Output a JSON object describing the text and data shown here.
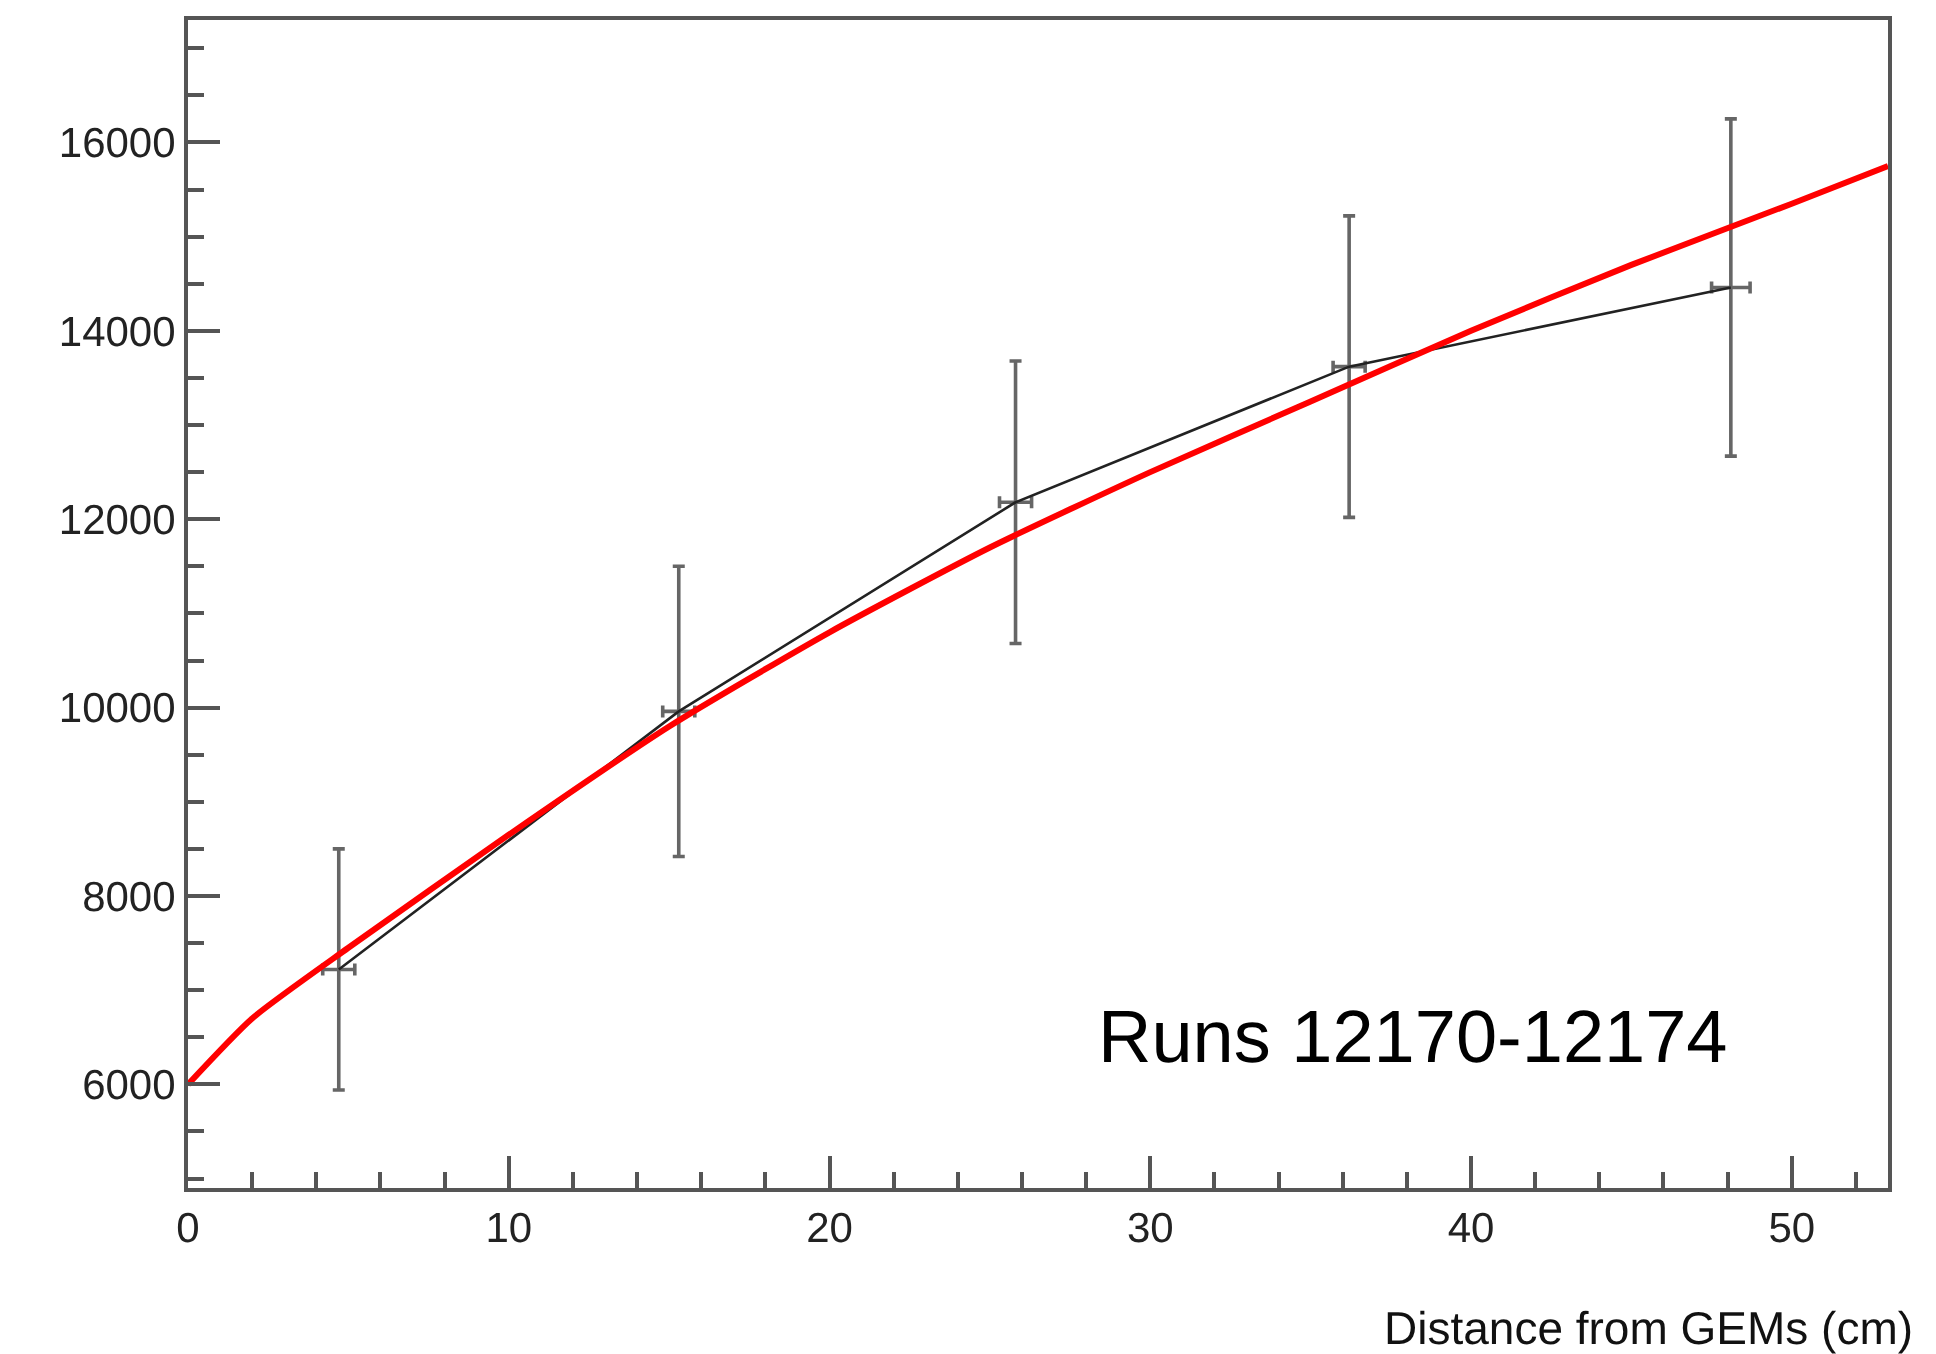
{
  "chart_data": {
    "type": "line",
    "xlabel": "Distance from GEMs (cm)",
    "annotations": [
      "Runs 12170-12174"
    ],
    "xlim": [
      0,
      53
    ],
    "ylim": [
      4900,
      17300
    ],
    "xticks": [
      0,
      {
        "value": 2,
        "label": null
      },
      {
        "value": 4,
        "label": null
      },
      {
        "value": 6,
        "label": null
      },
      {
        "value": 8,
        "label": null
      },
      10,
      {
        "value": 12,
        "label": null
      },
      {
        "value": 14,
        "label": null
      },
      {
        "value": 16,
        "label": null
      },
      {
        "value": 18,
        "label": null
      },
      20,
      {
        "value": 22,
        "label": null
      },
      {
        "value": 24,
        "label": null
      },
      {
        "value": 26,
        "label": null
      },
      {
        "value": 28,
        "label": null
      },
      30,
      {
        "value": 32,
        "label": null
      },
      {
        "value": 34,
        "label": null
      },
      {
        "value": 36,
        "label": null
      },
      {
        "value": 38,
        "label": null
      },
      40,
      {
        "value": 42,
        "label": null
      },
      {
        "value": 44,
        "label": null
      },
      {
        "value": 46,
        "label": null
      },
      {
        "value": 48,
        "label": null
      },
      50,
      {
        "value": 52,
        "label": null
      }
    ],
    "yticks": [
      {
        "value": 5000,
        "label": null
      },
      {
        "value": 5500,
        "label": null
      },
      6000,
      {
        "value": 6500,
        "label": null
      },
      {
        "value": 7000,
        "label": null
      },
      {
        "value": 7500,
        "label": null
      },
      8000,
      {
        "value": 8500,
        "label": null
      },
      {
        "value": 9000,
        "label": null
      },
      {
        "value": 9500,
        "label": null
      },
      10000,
      {
        "value": 10500,
        "label": null
      },
      {
        "value": 11000,
        "label": null
      },
      {
        "value": 11500,
        "label": null
      },
      12000,
      {
        "value": 12500,
        "label": null
      },
      {
        "value": 13000,
        "label": null
      },
      {
        "value": 13500,
        "label": null
      },
      14000,
      {
        "value": 14500,
        "label": null
      },
      {
        "value": 15000,
        "label": null
      },
      {
        "value": 15500,
        "label": null
      },
      16000,
      {
        "value": 16500,
        "label": null
      },
      {
        "value": 17000,
        "label": null
      }
    ],
    "grid": false,
    "marker": "none",
    "line_style": "solid",
    "series": [
      {
        "color": "#222222",
        "x": [
          4.7,
          15.3,
          25.8,
          36.2,
          48.1
        ],
        "values": [
          7220,
          9960,
          12180,
          13620,
          14460
        ],
        "errors": [
          1280,
          1540,
          1500,
          1600,
          1790
        ],
        "xerrors": [
          0.5,
          0.5,
          0.5,
          0.5,
          0.6
        ]
      },
      {
        "color": "#ff0000",
        "x": [
          0,
          2,
          5,
          10,
          15,
          20,
          25,
          30,
          35,
          40,
          45,
          50,
          53
        ],
        "values": [
          6000,
          6700,
          7450,
          8650,
          9800,
          10800,
          11700,
          12500,
          13250,
          14000,
          14700,
          15350,
          15750
        ]
      }
    ]
  }
}
